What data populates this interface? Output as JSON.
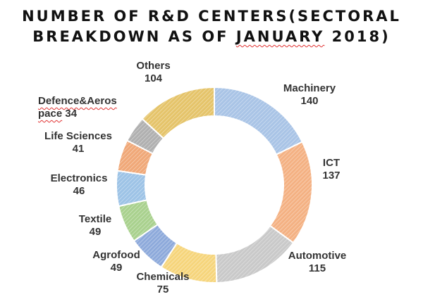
{
  "title": {
    "line1": "NUMBER OF R&D CENTERS(SECTORAL",
    "line2_pre": "BREAKDOWN AS OF ",
    "line2_flag": "JANUARY",
    "line2_post": " 2018)"
  },
  "chart_data": {
    "type": "pie",
    "variant": "donut",
    "title": "NUMBER OF R&D CENTERS(SECTORAL BREAKDOWN AS OF JANUARY 2018)",
    "start": "top",
    "direction": "clockwise",
    "categories": [
      "Machinery",
      "ICT",
      "Automotive",
      "Chemicals",
      "Agrofood",
      "Textile",
      "Electronics",
      "Life Sciences",
      "Defence&Aerospace",
      "Others"
    ],
    "values": [
      140,
      137,
      115,
      75,
      49,
      49,
      46,
      41,
      34,
      104
    ],
    "colors": [
      "#a9c4e6",
      "#f4b183",
      "#c9c9c9",
      "#f6d57c",
      "#8eaadb",
      "#a9d18e",
      "#9dc3e6",
      "#f0a878",
      "#b0b0b0",
      "#e5c46a"
    ],
    "labels": [
      {
        "name": "Machinery",
        "value": "140"
      },
      {
        "name": "ICT",
        "value": "137"
      },
      {
        "name": "Automotive",
        "value": "115"
      },
      {
        "name": "Chemicals",
        "value": "75"
      },
      {
        "name": "Agrofood",
        "value": "49"
      },
      {
        "name": "Textile",
        "value": "49"
      },
      {
        "name": "Electronics",
        "value": "46"
      },
      {
        "name": "Life Sciences",
        "value": "41"
      },
      {
        "name_a": "Defence&Aeros",
        "name_b": "pace",
        "value": "34"
      },
      {
        "name": "Others",
        "value": "104"
      }
    ]
  }
}
